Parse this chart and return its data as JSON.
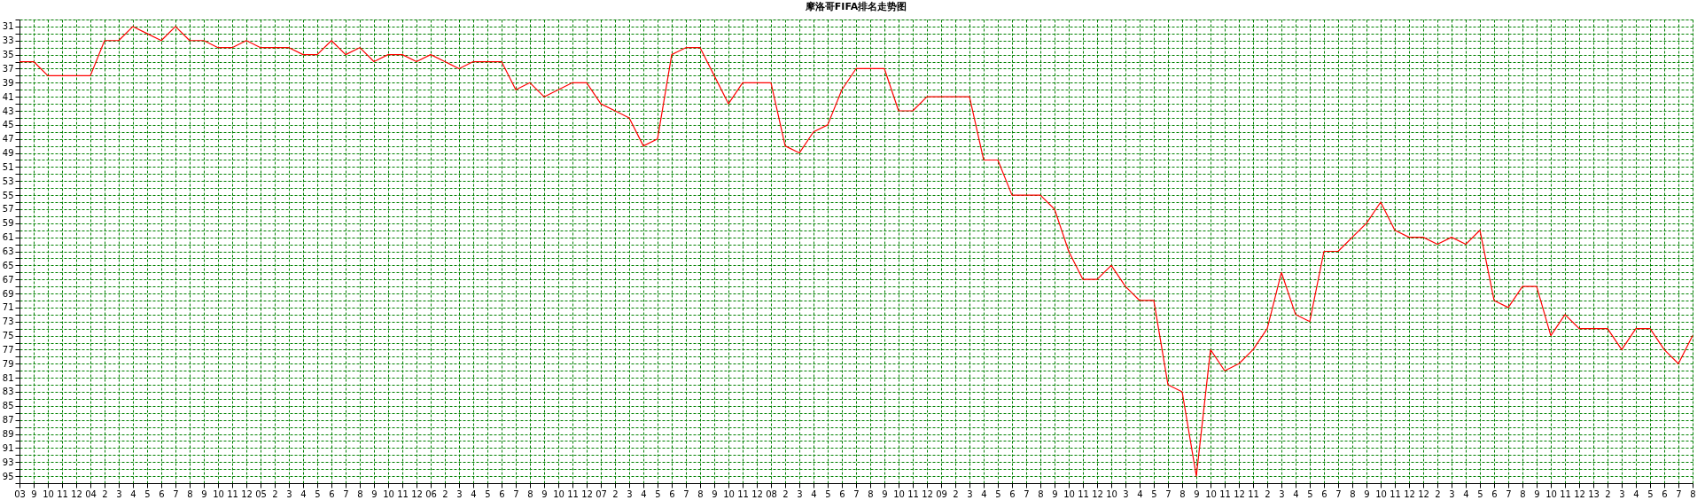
{
  "chart_data": {
    "type": "line",
    "title": "摩洛哥FIFA排名走势图",
    "categories": [
      "03",
      "9",
      "10",
      "11",
      "12",
      "04",
      "2",
      "3",
      "4",
      "5",
      "6",
      "7",
      "8",
      "9",
      "10",
      "11",
      "12",
      "05",
      "2",
      "3",
      "4",
      "5",
      "6",
      "7",
      "8",
      "9",
      "10",
      "11",
      "12",
      "06",
      "2",
      "3",
      "4",
      "5",
      "6",
      "7",
      "8",
      "9",
      "10",
      "11",
      "12",
      "07",
      "2",
      "3",
      "4",
      "5",
      "6",
      "7",
      "8",
      "9",
      "10",
      "11",
      "12",
      "08",
      "2",
      "3",
      "4",
      "5",
      "6",
      "7",
      "8",
      "9",
      "10",
      "11",
      "12",
      "09",
      "2",
      "3",
      "4",
      "5",
      "6",
      "7",
      "8",
      "9",
      "10",
      "11",
      "12",
      "10",
      "3",
      "4",
      "5",
      "7",
      "8",
      "9",
      "10",
      "11",
      "12",
      "11",
      "2",
      "3",
      "4",
      "5",
      "6",
      "7",
      "8",
      "9",
      "10",
      "11",
      "12",
      "12",
      "2",
      "3",
      "4",
      "5",
      "6",
      "7",
      "8",
      "9",
      "10",
      "11",
      "12",
      "13",
      "2",
      "3",
      "4",
      "5",
      "6",
      "7",
      "8"
    ],
    "series": [
      {
        "color": "#ff0000",
        "values": [
          36,
          36,
          38,
          38,
          38,
          38,
          33,
          33,
          31,
          32,
          33,
          31,
          33,
          33,
          34,
          34,
          33,
          34,
          34,
          34,
          35,
          35,
          33,
          35,
          34,
          36,
          35,
          35,
          36,
          35,
          36,
          37,
          36,
          36,
          36,
          40,
          39,
          41,
          40,
          39,
          39,
          42,
          43,
          44,
          48,
          47,
          35,
          34,
          34,
          38,
          42,
          39,
          39,
          39,
          48,
          49,
          46,
          45,
          40,
          37,
          37,
          37,
          43,
          43,
          41,
          41,
          41,
          41,
          50,
          50,
          55,
          55,
          55,
          57,
          63,
          67,
          67,
          65,
          68,
          70,
          70,
          82,
          83,
          95,
          77,
          80,
          79,
          77,
          74,
          66,
          72,
          73,
          63,
          63,
          61,
          59,
          56,
          60,
          61,
          61,
          62,
          61,
          62,
          60,
          70,
          71,
          68,
          68,
          75,
          72,
          74,
          74,
          74,
          77,
          74,
          74,
          77,
          79,
          75
        ]
      }
    ],
    "ylim": [
      96,
      30
    ],
    "yticks": [
      {
        "value": 30,
        "label": null
      },
      31,
      {
        "value": 32,
        "label": null
      },
      33,
      {
        "value": 34,
        "label": null
      },
      35,
      {
        "value": 36,
        "label": null
      },
      37,
      {
        "value": 38,
        "label": null
      },
      39,
      {
        "value": 40,
        "label": null
      },
      41,
      {
        "value": 42,
        "label": null
      },
      43,
      {
        "value": 44,
        "label": null
      },
      45,
      {
        "value": 46,
        "label": null
      },
      47,
      {
        "value": 48,
        "label": null
      },
      49,
      {
        "value": 50,
        "label": null
      },
      51,
      {
        "value": 52,
        "label": null
      },
      53,
      {
        "value": 54,
        "label": null
      },
      55,
      {
        "value": 56,
        "label": null
      },
      57,
      {
        "value": 58,
        "label": null
      },
      59,
      {
        "value": 60,
        "label": null
      },
      61,
      {
        "value": 62,
        "label": null
      },
      63,
      {
        "value": 64,
        "label": null
      },
      65,
      {
        "value": 66,
        "label": null
      },
      67,
      {
        "value": 68,
        "label": null
      },
      69,
      {
        "value": 70,
        "label": null
      },
      71,
      {
        "value": 72,
        "label": null
      },
      73,
      {
        "value": 74,
        "label": null
      },
      75,
      {
        "value": 76,
        "label": null
      },
      77,
      {
        "value": 78,
        "label": null
      },
      79,
      {
        "value": 80,
        "label": null
      },
      81,
      {
        "value": 82,
        "label": null
      },
      83,
      {
        "value": 84,
        "label": null
      },
      85,
      {
        "value": 86,
        "label": null
      },
      87,
      {
        "value": 88,
        "label": null
      },
      89,
      {
        "value": 90,
        "label": null
      },
      91,
      {
        "value": 92,
        "label": null
      },
      93,
      {
        "value": 94,
        "label": null
      },
      95,
      {
        "value": 96,
        "label": null
      }
    ],
    "grid": true,
    "marker": "none",
    "line_style": "solid"
  }
}
